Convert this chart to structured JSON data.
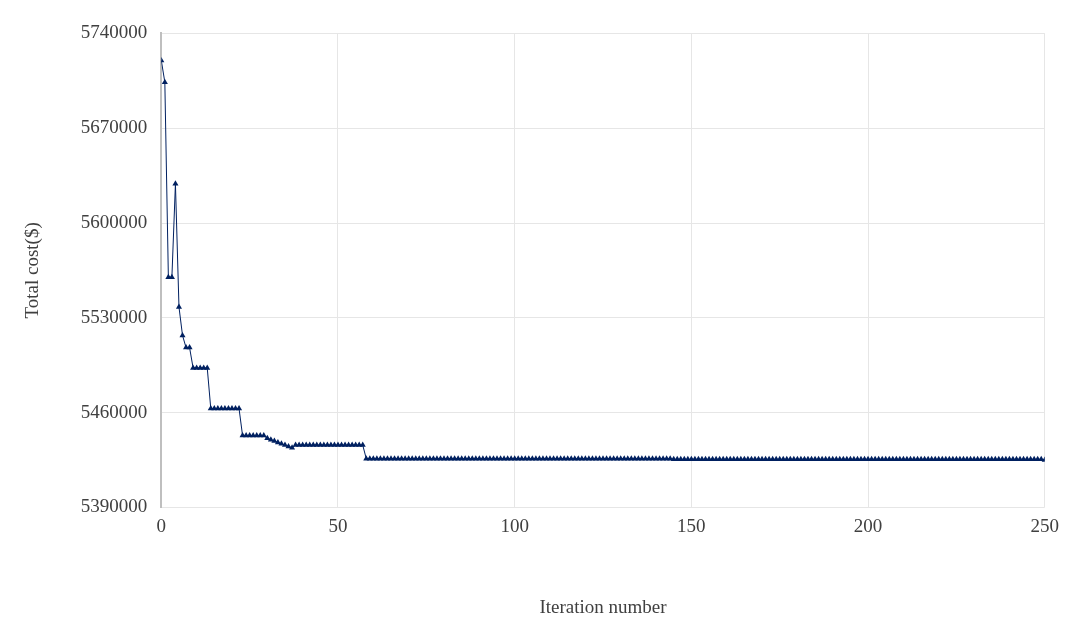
{
  "chart_data": {
    "type": "line",
    "xlabel": "Iteration number",
    "ylabel": "Total cost($)",
    "marker": "triangle",
    "grid": true,
    "legend": false,
    "xlim": [
      0,
      250
    ],
    "xticks": [
      0,
      50,
      100,
      150,
      200,
      250
    ],
    "ylim": [
      5390000,
      5740000
    ],
    "yticks": [
      5390000,
      5460000,
      5530000,
      5600000,
      5670000,
      5740000
    ],
    "x": [
      0,
      1,
      2,
      3,
      4,
      5,
      6,
      7,
      8,
      9,
      10,
      11,
      12,
      13,
      14,
      15,
      16,
      17,
      18,
      19,
      20,
      21,
      22,
      23,
      24,
      25,
      26,
      27,
      28,
      29,
      30,
      31,
      32,
      33,
      34,
      35,
      36,
      37,
      38,
      39,
      40,
      41,
      42,
      43,
      44,
      45,
      46,
      47,
      48,
      49,
      50,
      51,
      52,
      53,
      54,
      55,
      56,
      57,
      58,
      59,
      60,
      61,
      62,
      63,
      64,
      65,
      66,
      67,
      68,
      69,
      70,
      71,
      72,
      73,
      74,
      75,
      76,
      77,
      78,
      79,
      80,
      81,
      82,
      83,
      84,
      85,
      86,
      87,
      88,
      89,
      90,
      91,
      92,
      93,
      94,
      95,
      96,
      97,
      98,
      99,
      100,
      101,
      102,
      103,
      104,
      105,
      106,
      107,
      108,
      109,
      110,
      111,
      112,
      113,
      114,
      115,
      116,
      117,
      118,
      119,
      120,
      121,
      122,
      123,
      124,
      125,
      126,
      127,
      128,
      129,
      130,
      131,
      132,
      133,
      134,
      135,
      136,
      137,
      138,
      139,
      140,
      141,
      142,
      143,
      144,
      145,
      146,
      147,
      148,
      149,
      150,
      151,
      152,
      153,
      154,
      155,
      156,
      157,
      158,
      159,
      160,
      161,
      162,
      163,
      164,
      165,
      166,
      167,
      168,
      169,
      170,
      171,
      172,
      173,
      174,
      175,
      176,
      177,
      178,
      179,
      180,
      181,
      182,
      183,
      184,
      185,
      186,
      187,
      188,
      189,
      190,
      191,
      192,
      193,
      194,
      195,
      196,
      197,
      198,
      199,
      200,
      201,
      202,
      203,
      204,
      205,
      206,
      207,
      208,
      209,
      210,
      211,
      212,
      213,
      214,
      215,
      216,
      217,
      218,
      219,
      220,
      221,
      222,
      223,
      224,
      225,
      226,
      227,
      228,
      229,
      230,
      231,
      232,
      233,
      234,
      235,
      236,
      237,
      238,
      239,
      240,
      241,
      242,
      243,
      244,
      245,
      246,
      247,
      248,
      249,
      250
    ],
    "series": [
      {
        "color": "#002060",
        "values": [
          5720000,
          5704000,
          5560000,
          5560000,
          5629000,
          5538000,
          5517000,
          5508000,
          5508000,
          5493000,
          5493000,
          5493000,
          5493000,
          5493000,
          5463000,
          5463000,
          5463000,
          5463000,
          5463000,
          5463000,
          5463000,
          5463000,
          5463000,
          5443000,
          5443000,
          5443000,
          5443000,
          5443000,
          5443000,
          5443000,
          5441000,
          5440000,
          5439000,
          5438000,
          5437000,
          5436000,
          5435000,
          5434000,
          5436000,
          5436000,
          5436000,
          5436000,
          5436000,
          5436000,
          5436000,
          5436000,
          5436000,
          5436000,
          5436000,
          5436000,
          5436000,
          5436000,
          5436000,
          5436000,
          5436000,
          5436000,
          5436000,
          5436000,
          5426000,
          5426000,
          5426000,
          5426000,
          5426000,
          5426000,
          5426000,
          5426000,
          5426000,
          5426000,
          5426000,
          5426000,
          5426000,
          5426000,
          5426000,
          5426000,
          5426000,
          5426000,
          5426000,
          5426000,
          5426000,
          5426000,
          5426000,
          5426000,
          5426000,
          5426000,
          5426000,
          5426000,
          5426000,
          5426000,
          5426000,
          5426000,
          5426000,
          5426000,
          5426000,
          5426000,
          5426000,
          5426000,
          5426000,
          5426000,
          5426000,
          5426000,
          5426000,
          5426000,
          5426000,
          5426000,
          5426000,
          5426000,
          5426000,
          5426000,
          5426000,
          5426000,
          5426000,
          5426000,
          5426000,
          5426000,
          5426000,
          5426000,
          5426000,
          5426000,
          5426000,
          5426000,
          5426000,
          5426000,
          5426000,
          5426000,
          5426000,
          5426000,
          5426000,
          5426000,
          5426000,
          5426000,
          5426000,
          5426000,
          5426000,
          5426000,
          5426000,
          5426000,
          5426000,
          5426000,
          5426000,
          5426000,
          5426000,
          5426000,
          5426000,
          5426000,
          5426000,
          5425500,
          5425500,
          5425500,
          5425500,
          5425500,
          5425500,
          5425500,
          5425500,
          5425500,
          5425500,
          5425500,
          5425500,
          5425500,
          5425500,
          5425500,
          5425500,
          5425500,
          5425500,
          5425500,
          5425500,
          5425500,
          5425500,
          5425500,
          5425500,
          5425500,
          5425500,
          5425500,
          5425500,
          5425500,
          5425500,
          5425500,
          5425500,
          5425500,
          5425500,
          5425500,
          5425500,
          5425500,
          5425500,
          5425500,
          5425500,
          5425500,
          5425500,
          5425500,
          5425500,
          5425500,
          5425500,
          5425500,
          5425500,
          5425500,
          5425500,
          5425500,
          5425500,
          5425500,
          5425500,
          5425500,
          5425500,
          5425500,
          5425500,
          5425500,
          5425500,
          5425500,
          5425500,
          5425500,
          5425500,
          5425500,
          5425500,
          5425500,
          5425500,
          5425500,
          5425500,
          5425500,
          5425500,
          5425500,
          5425500,
          5425500,
          5425500,
          5425500,
          5425500,
          5425500,
          5425500,
          5425500,
          5425500,
          5425500,
          5425500,
          5425500,
          5425500,
          5425500,
          5425500,
          5425500,
          5425500,
          5425500,
          5425500,
          5425500,
          5425500,
          5425500,
          5425500,
          5425500,
          5425500,
          5425500,
          5425500,
          5425500,
          5425500,
          5425500,
          5425500,
          5425500,
          5425000
        ]
      }
    ]
  }
}
